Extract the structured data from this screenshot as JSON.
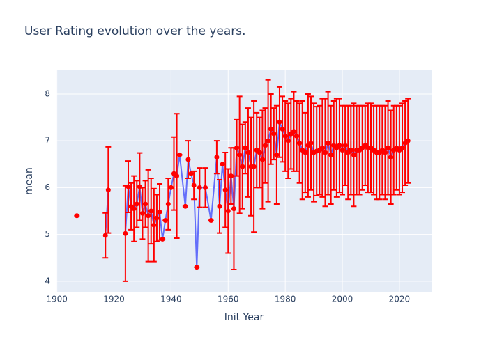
{
  "chart_data": {
    "type": "line",
    "title": "User Rating evolution over the years.",
    "x_label": "Init Year",
    "y_label": "mean",
    "x": [
      1907,
      1912,
      1917,
      1918,
      1921,
      1924,
      1925,
      1926,
      1927,
      1928,
      1929,
      1930,
      1931,
      1932,
      1933,
      1934,
      1935,
      1936,
      1937,
      1938,
      1939,
      1940,
      1941,
      1942,
      1943,
      1945,
      1946,
      1947,
      1948,
      1949,
      1950,
      1952,
      1954,
      1956,
      1957,
      1958,
      1959,
      1960,
      1961,
      1962,
      1963,
      1964,
      1965,
      1966,
      1967,
      1968,
      1969,
      1970,
      1971,
      1972,
      1973,
      1974,
      1975,
      1976,
      1977,
      1978,
      1979,
      1980,
      1981,
      1982,
      1983,
      1984,
      1985,
      1986,
      1987,
      1988,
      1989,
      1990,
      1991,
      1992,
      1993,
      1994,
      1995,
      1996,
      1997,
      1998,
      1999,
      2000,
      2001,
      2002,
      2003,
      2004,
      2005,
      2006,
      2007,
      2008,
      2009,
      2010,
      2011,
      2012,
      2013,
      2014,
      2015,
      2016,
      2017,
      2018,
      2019,
      2020,
      2021,
      2022,
      2023
    ],
    "values": [
      5.4,
      null,
      4.98,
      5.95,
      null,
      5.02,
      6.02,
      5.6,
      5.55,
      5.65,
      6.02,
      5.45,
      5.65,
      5.4,
      5.5,
      5.2,
      5.35,
      5.48,
      4.9,
      5.3,
      5.65,
      6.0,
      6.3,
      6.25,
      6.7,
      5.6,
      6.6,
      6.3,
      6.05,
      4.3,
      6.0,
      6.0,
      5.3,
      6.65,
      5.6,
      6.5,
      5.95,
      5.5,
      6.25,
      5.55,
      6.85,
      6.7,
      6.45,
      6.85,
      6.75,
      6.45,
      6.45,
      6.8,
      6.75,
      6.6,
      6.9,
      7.0,
      7.25,
      7.15,
      6.7,
      7.4,
      7.25,
      7.1,
      7.0,
      7.15,
      7.2,
      7.1,
      6.95,
      6.8,
      6.75,
      6.9,
      6.95,
      6.75,
      6.78,
      6.8,
      6.85,
      6.75,
      6.95,
      6.7,
      6.9,
      6.85,
      6.9,
      6.8,
      6.9,
      6.75,
      6.8,
      6.7,
      6.8,
      6.8,
      6.85,
      6.9,
      6.85,
      6.85,
      6.8,
      6.75,
      6.75,
      6.8,
      6.75,
      6.85,
      6.65,
      6.8,
      6.85,
      6.8,
      6.85,
      6.95,
      7.0
    ],
    "errors": [
      0,
      null,
      0.48,
      0.92,
      null,
      1.02,
      0.55,
      0.5,
      0.7,
      0.5,
      0.72,
      0.55,
      0.5,
      0.98,
      0.7,
      0.78,
      0.5,
      0.6,
      0,
      0,
      0.55,
      0,
      0.78,
      1.33,
      0,
      0,
      0.4,
      0,
      0.3,
      0,
      0.42,
      0.42,
      0,
      0.35,
      0.57,
      0,
      0.8,
      0.9,
      0.6,
      1.3,
      0.6,
      1.25,
      0.9,
      0.55,
      0.95,
      1.05,
      1.4,
      0.8,
      0.75,
      1.05,
      0.8,
      1.3,
      0.75,
      0.55,
      1.05,
      0.75,
      0.7,
      0.75,
      0.8,
      0.75,
      0.85,
      0.75,
      0.85,
      1.05,
      0.85,
      1.1,
      1.0,
      1.05,
      0.95,
      0.95,
      1.05,
      1.15,
      1.1,
      1.05,
      0.95,
      1.05,
      1.0,
      0.95,
      0.85,
      1.0,
      0.95,
      1.1,
      0.95,
      0.95,
      0.9,
      0.85,
      0.95,
      0.95,
      0.95,
      1.0,
      1.0,
      0.95,
      1.0,
      1.0,
      1.0,
      0.95,
      0.9,
      0.95,
      0.95,
      0.9,
      0.9
    ],
    "line_color": "#636efa",
    "marker_color": "#ff0000",
    "error_color": "#ff0000",
    "xlim": [
      1899.6,
      2031.5
    ],
    "xticks": [
      1900,
      1920,
      1940,
      1960,
      1980,
      2000,
      2020
    ],
    "ylim": [
      3.76,
      8.52
    ],
    "yticks": [
      4,
      5,
      6,
      7,
      8
    ],
    "grid": true
  }
}
